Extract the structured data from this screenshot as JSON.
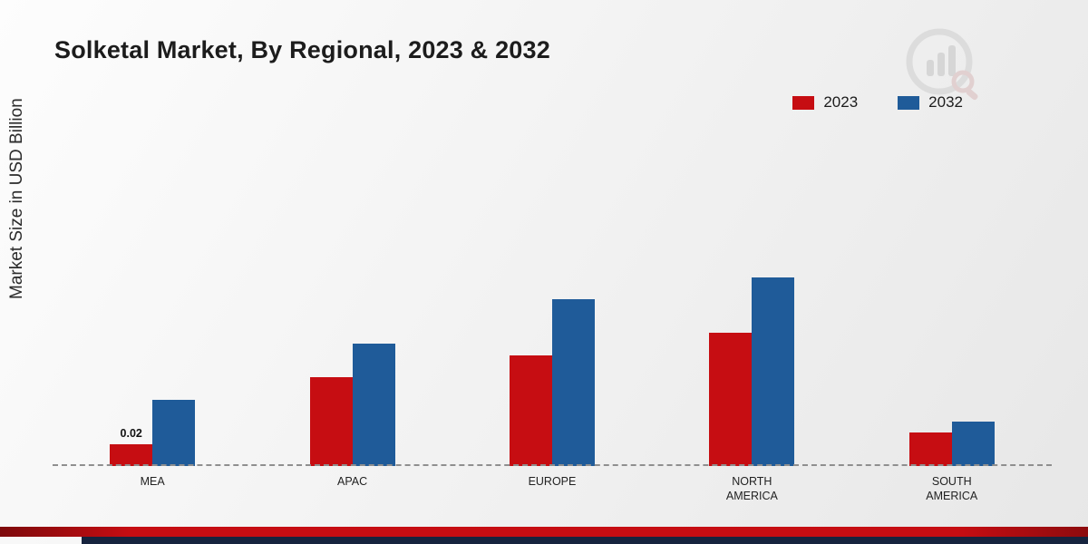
{
  "title": "Solketal Market, By Regional, 2023 & 2032",
  "ylabel": "Market Size in USD Billion",
  "legend": [
    {
      "label": "2023",
      "color": "#c60d12"
    },
    {
      "label": "2032",
      "color": "#1f5b99"
    }
  ],
  "chart_data": {
    "type": "bar",
    "title": "Solketal Market, By Regional, 2023 & 2032",
    "xlabel": "",
    "ylabel": "Market Size in USD Billion",
    "categories": [
      "MEA",
      "APAC",
      "EUROPE",
      "NORTH AMERICA",
      "SOUTH AMERICA"
    ],
    "series": [
      {
        "name": "2023",
        "color": "#c60d12",
        "values": [
          0.02,
          0.08,
          0.1,
          0.12,
          0.03
        ]
      },
      {
        "name": "2032",
        "color": "#1f5b99",
        "values": [
          0.06,
          0.11,
          0.15,
          0.17,
          0.04
        ]
      }
    ],
    "annotations": [
      {
        "category": "MEA",
        "series": "2023",
        "text": "0.02"
      }
    ],
    "ylim": [
      0,
      0.18
    ],
    "grid": false,
    "legend_position": "top-right",
    "baseline_style": "dashed"
  },
  "colors": {
    "footer_red": "#c60d12",
    "footer_navy": "#16243e",
    "logo_gray": "#cfcfcf"
  }
}
